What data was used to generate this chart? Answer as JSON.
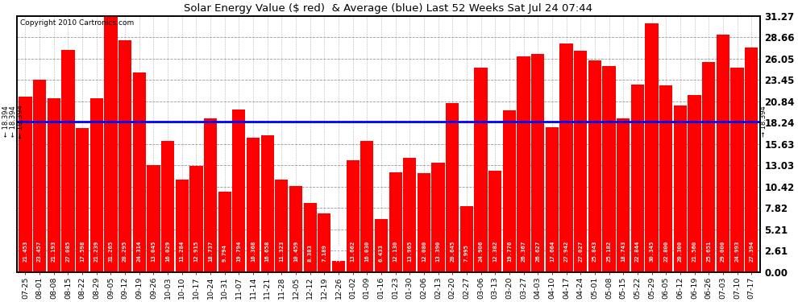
{
  "title": "Solar Energy Value ($ red)  & Average (blue) Last 52 Weeks Sat Jul 24 07:44",
  "copyright": "Copyright 2010 Cartronics.com",
  "average": 18.394,
  "bar_color": "#ff0000",
  "avg_line_color": "#0000ff",
  "background_color": "#ffffff",
  "plot_bg_color": "#ffffff",
  "grid_color": "#999999",
  "ylabel_right_values": [
    0.0,
    2.61,
    5.21,
    7.82,
    10.42,
    13.03,
    15.63,
    18.24,
    20.84,
    23.45,
    26.05,
    28.66,
    31.27
  ],
  "categories": [
    "07-25",
    "08-01",
    "08-08",
    "08-15",
    "08-22",
    "08-29",
    "09-05",
    "09-12",
    "09-19",
    "09-26",
    "10-03",
    "10-10",
    "10-17",
    "10-24",
    "10-31",
    "11-07",
    "11-14",
    "11-21",
    "11-28",
    "12-05",
    "12-12",
    "12-19",
    "12-26",
    "01-02",
    "01-09",
    "01-16",
    "01-23",
    "01-30",
    "02-06",
    "02-13",
    "02-20",
    "02-27",
    "03-06",
    "03-13",
    "03-20",
    "03-27",
    "04-03",
    "04-10",
    "04-17",
    "04-24",
    "05-01",
    "05-08",
    "05-15",
    "05-22",
    "05-29",
    "06-05",
    "06-12",
    "06-19",
    "06-26",
    "07-03",
    "07-10",
    "07-17"
  ],
  "values": [
    21.453,
    23.457,
    21.193,
    27.085,
    17.598,
    21.239,
    31.265,
    28.295,
    24.314,
    13.045,
    16.029,
    11.284,
    12.915,
    18.737,
    9.794,
    19.794,
    16.368,
    16.658,
    11.323,
    10.459,
    8.383,
    7.189,
    1.364,
    13.662,
    16.03,
    6.433,
    12.13,
    13.965,
    12.08,
    13.39,
    20.645,
    7.995,
    24.906,
    12.382,
    19.776,
    26.367,
    26.627,
    17.664,
    27.942,
    27.027,
    25.843,
    25.182,
    18.743,
    22.844,
    30.345,
    22.8,
    20.3,
    21.56,
    25.651,
    29.0,
    24.993,
    27.394
  ],
  "ylim": [
    0,
    31.27
  ],
  "figsize": [
    9.9,
    3.75
  ],
  "dpi": 100
}
